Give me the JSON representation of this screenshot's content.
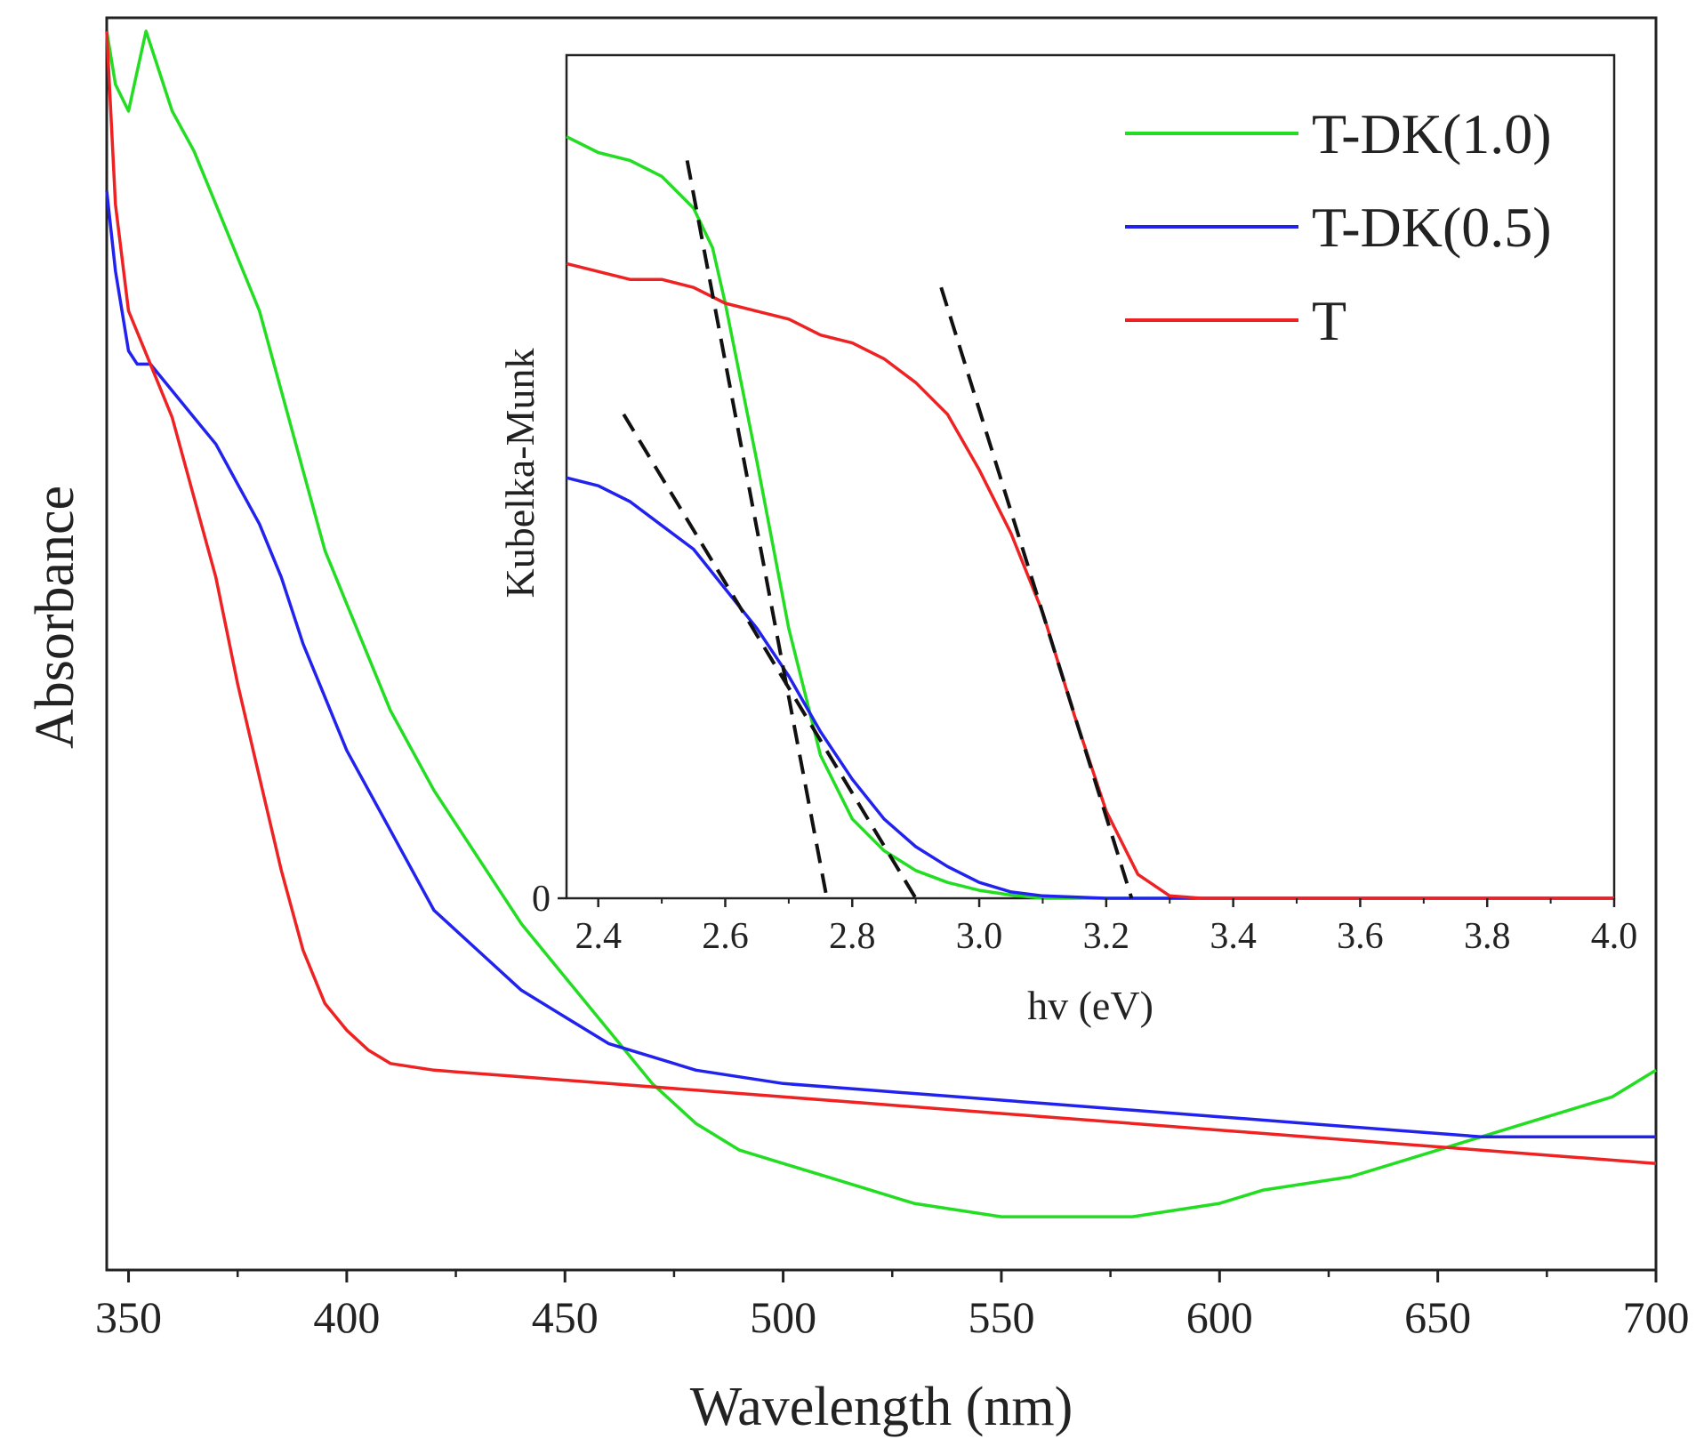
{
  "chart_data": [
    {
      "type": "line",
      "role": "main",
      "title": "",
      "xlabel": "Wavelength (nm)",
      "ylabel": "Absorbance",
      "xlim": [
        345,
        700
      ],
      "ylim": [
        0.06,
        1.0
      ],
      "xticks": [
        350,
        400,
        450,
        500,
        550,
        600,
        650,
        700
      ],
      "yticks_visible": false,
      "series": [
        {
          "name": "T-DK(1.0)",
          "color": "#22dd22",
          "x": [
            345,
            347,
            350,
            352,
            354,
            356,
            358,
            360,
            365,
            370,
            375,
            380,
            385,
            390,
            395,
            400,
            410,
            420,
            430,
            440,
            450,
            460,
            470,
            480,
            490,
            500,
            510,
            520,
            530,
            540,
            550,
            560,
            570,
            580,
            590,
            600,
            610,
            620,
            630,
            640,
            650,
            660,
            670,
            680,
            690,
            700
          ],
          "y": [
            0.99,
            0.95,
            0.93,
            0.96,
            0.99,
            0.97,
            0.95,
            0.93,
            0.9,
            0.86,
            0.82,
            0.78,
            0.72,
            0.66,
            0.6,
            0.56,
            0.48,
            0.42,
            0.37,
            0.32,
            0.28,
            0.24,
            0.2,
            0.17,
            0.15,
            0.14,
            0.13,
            0.12,
            0.11,
            0.105,
            0.1,
            0.1,
            0.1,
            0.1,
            0.105,
            0.11,
            0.12,
            0.125,
            0.13,
            0.14,
            0.15,
            0.16,
            0.17,
            0.18,
            0.19,
            0.21
          ]
        },
        {
          "name": "T-DK(0.5)",
          "color": "#2222ee",
          "x": [
            345,
            347,
            350,
            352,
            355,
            360,
            365,
            370,
            375,
            380,
            385,
            390,
            395,
            400,
            410,
            420,
            430,
            440,
            450,
            460,
            470,
            480,
            490,
            500,
            520,
            540,
            560,
            580,
            600,
            620,
            640,
            660,
            680,
            700
          ],
          "y": [
            0.87,
            0.81,
            0.75,
            0.74,
            0.74,
            0.72,
            0.7,
            0.68,
            0.65,
            0.62,
            0.58,
            0.53,
            0.49,
            0.45,
            0.39,
            0.33,
            0.3,
            0.27,
            0.25,
            0.23,
            0.22,
            0.21,
            0.205,
            0.2,
            0.195,
            0.19,
            0.185,
            0.18,
            0.175,
            0.17,
            0.165,
            0.16,
            0.16,
            0.16
          ]
        },
        {
          "name": "T",
          "color": "#ee2222",
          "x": [
            345,
            347,
            350,
            355,
            360,
            365,
            370,
            375,
            380,
            385,
            390,
            395,
            400,
            405,
            410,
            420,
            440,
            460,
            480,
            500,
            520,
            540,
            560,
            580,
            600,
            620,
            640,
            660,
            680,
            700
          ],
          "y": [
            0.99,
            0.86,
            0.78,
            0.74,
            0.7,
            0.64,
            0.58,
            0.5,
            0.43,
            0.36,
            0.3,
            0.26,
            0.24,
            0.225,
            0.215,
            0.21,
            0.205,
            0.2,
            0.195,
            0.19,
            0.185,
            0.18,
            0.175,
            0.17,
            0.165,
            0.16,
            0.155,
            0.15,
            0.145,
            0.14
          ]
        }
      ]
    },
    {
      "type": "line",
      "role": "inset",
      "title": "",
      "xlabel": "hv (eV)",
      "ylabel": "Kubelka-Munk",
      "xlim": [
        2.35,
        4.0
      ],
      "ylim": [
        0,
        1.0
      ],
      "xticks": [
        "2.4",
        "2.6",
        "2.8",
        "3.0",
        "3.2",
        "3.4",
        "3.6",
        "3.8",
        "4.0"
      ],
      "yticks": [
        "0"
      ],
      "series": [
        {
          "name": "T-DK(1.0)",
          "color": "#22dd22",
          "x": [
            2.35,
            2.4,
            2.45,
            2.5,
            2.55,
            2.58,
            2.6,
            2.65,
            2.7,
            2.75,
            2.8,
            2.85,
            2.9,
            2.95,
            3.0,
            3.05,
            3.1,
            4.0
          ],
          "y": [
            0.96,
            0.94,
            0.93,
            0.91,
            0.87,
            0.82,
            0.75,
            0.55,
            0.34,
            0.18,
            0.1,
            0.06,
            0.035,
            0.02,
            0.01,
            0.004,
            0.0,
            0.0
          ]
        },
        {
          "name": "T-DK(0.5)",
          "color": "#2222ee",
          "x": [
            2.35,
            2.4,
            2.45,
            2.5,
            2.55,
            2.6,
            2.65,
            2.7,
            2.75,
            2.8,
            2.85,
            2.9,
            2.95,
            3.0,
            3.05,
            3.1,
            3.2,
            3.35,
            4.0
          ],
          "y": [
            0.53,
            0.52,
            0.5,
            0.47,
            0.44,
            0.39,
            0.34,
            0.28,
            0.21,
            0.15,
            0.1,
            0.065,
            0.04,
            0.02,
            0.008,
            0.003,
            0.0,
            0.0,
            0.0
          ]
        },
        {
          "name": "T",
          "color": "#ee2222",
          "x": [
            2.35,
            2.4,
            2.45,
            2.5,
            2.55,
            2.6,
            2.65,
            2.7,
            2.75,
            2.8,
            2.85,
            2.9,
            2.95,
            3.0,
            3.05,
            3.1,
            3.15,
            3.2,
            3.25,
            3.3,
            3.35,
            4.0
          ],
          "y": [
            0.8,
            0.79,
            0.78,
            0.78,
            0.77,
            0.75,
            0.74,
            0.73,
            0.71,
            0.7,
            0.68,
            0.65,
            0.61,
            0.54,
            0.46,
            0.36,
            0.23,
            0.11,
            0.03,
            0.003,
            0.0,
            0.0
          ]
        }
      ],
      "tangent_lines": [
        {
          "name": "T-DK(1.0) fit",
          "x": [
            2.54,
            2.76
          ],
          "y": [
            0.93,
            0.0
          ]
        },
        {
          "name": "T-DK(0.5) fit",
          "x": [
            2.44,
            2.9
          ],
          "y": [
            0.61,
            0.0
          ]
        },
        {
          "name": "T fit",
          "x": [
            2.94,
            3.24
          ],
          "y": [
            0.77,
            0.0
          ]
        }
      ],
      "legend": {
        "position": "top-right",
        "entries": [
          "T-DK(1.0)",
          "T-DK(0.5)",
          "T"
        ]
      }
    }
  ]
}
